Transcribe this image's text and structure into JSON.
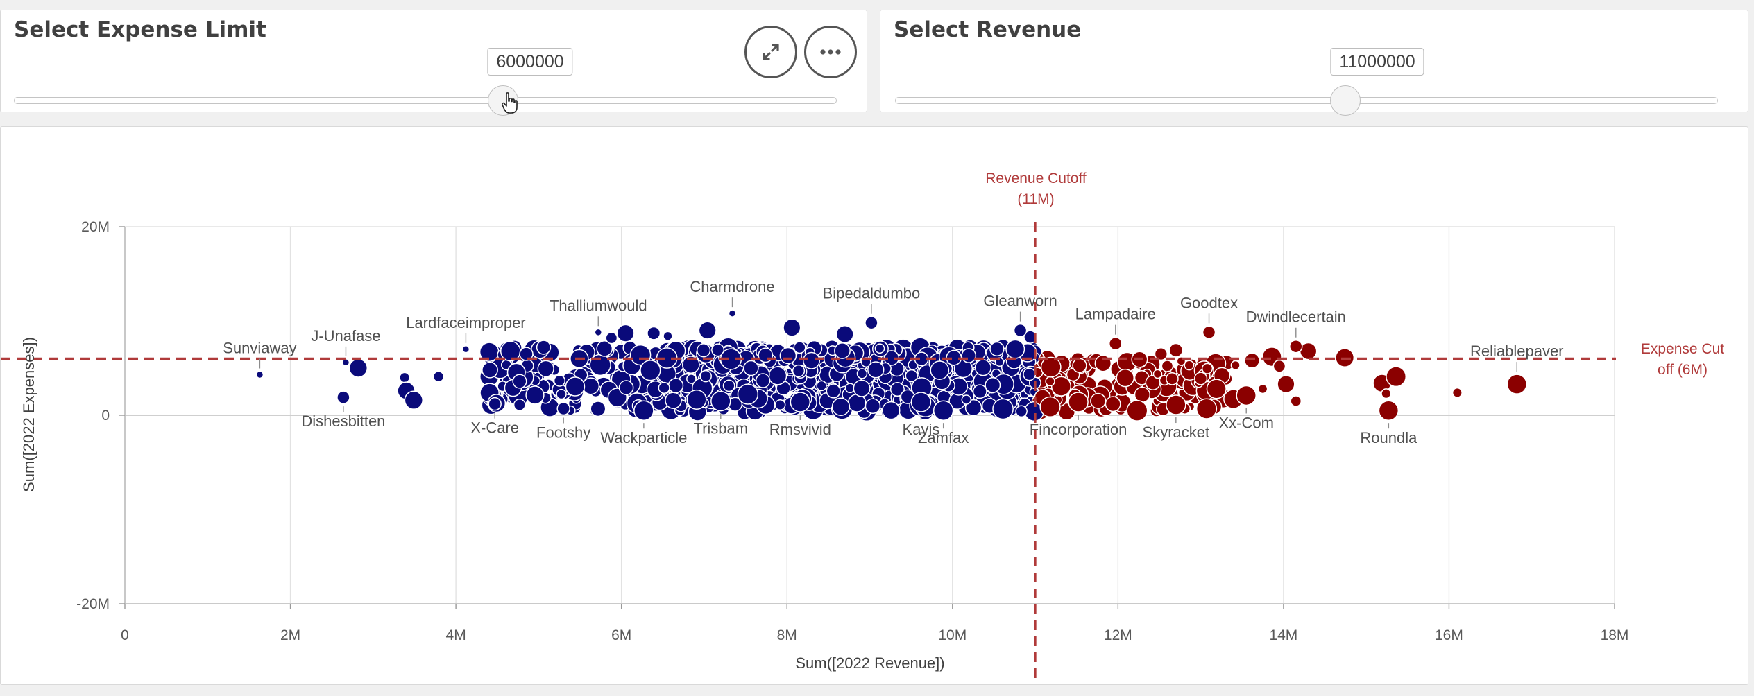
{
  "expense_filter": {
    "title": "Select Expense Limit",
    "value": "6000000",
    "slider_fraction": 0.595,
    "colors": {
      "track": "#ffffff",
      "thumb": "#f4f4f4"
    }
  },
  "revenue_filter": {
    "title": "Select Revenue",
    "value": "11000000",
    "slider_fraction": 0.546
  },
  "toolbar": {
    "expand_icon": "expand-icon",
    "more_icon": "more-options-icon"
  },
  "colors": {
    "below_cutoff": "#0a0a7a",
    "above_cutoff": "#8b0000",
    "reference_line": "#b03a3a",
    "grid": "#e2e2e2"
  },
  "chart_data": {
    "type": "scatter",
    "xlabel": "Sum([2022 Revenue])",
    "ylabel": "Sum([2022 Expenses])",
    "xlim": [
      0,
      18000000
    ],
    "ylim": [
      -20000000,
      20000000
    ],
    "x_ticks": [
      "0",
      "2M",
      "4M",
      "6M",
      "8M",
      "10M",
      "12M",
      "14M",
      "16M",
      "18M"
    ],
    "y_ticks": [
      "20M",
      "0",
      "-20M"
    ],
    "grid": true,
    "reference_lines": [
      {
        "axis": "x",
        "value": 11000000,
        "label_line1": "Revenue Cutoff",
        "label_line2": "(11M)"
      },
      {
        "axis": "y",
        "value": 6000000,
        "label_line1": "Expense Cut",
        "label_line2": "off (6M)"
      }
    ],
    "labeled_points": [
      {
        "name": "Sunviaway",
        "x": 1630000,
        "y": 4300000,
        "size": "s",
        "label_pos": "above"
      },
      {
        "name": "J-Unafase",
        "x": 2670000,
        "y": 5600000,
        "size": "s",
        "label_pos": "above"
      },
      {
        "name": "Dishesbitten",
        "x": 2640000,
        "y": 1900000,
        "size": "m",
        "label_pos": "below"
      },
      {
        "name": "Lardfaceimproper",
        "x": 4120000,
        "y": 7000000,
        "size": "s",
        "label_pos": "above"
      },
      {
        "name": "X-Care",
        "x": 4470000,
        "y": 1200000,
        "size": "m",
        "label_pos": "below"
      },
      {
        "name": "Footshy",
        "x": 5300000,
        "y": 700000,
        "size": "m",
        "label_pos": "below"
      },
      {
        "name": "Thalliumwould",
        "x": 5720000,
        "y": 8800000,
        "size": "s",
        "label_pos": "above"
      },
      {
        "name": "Wackparticle",
        "x": 6270000,
        "y": 500000,
        "size": "l",
        "label_pos": "below"
      },
      {
        "name": "Charmdrone",
        "x": 7340000,
        "y": 10800000,
        "size": "s",
        "label_pos": "above"
      },
      {
        "name": "Trisbam",
        "x": 7200000,
        "y": 1500000,
        "size": "l",
        "label_pos": "below"
      },
      {
        "name": "Rmsvivid",
        "x": 8160000,
        "y": 1400000,
        "size": "l",
        "label_pos": "below"
      },
      {
        "name": "Bipedaldumbo",
        "x": 9020000,
        "y": 9800000,
        "size": "m",
        "label_pos": "above"
      },
      {
        "name": "Kayis",
        "x": 9620000,
        "y": 1400000,
        "size": "l",
        "label_pos": "below"
      },
      {
        "name": "Zamfax",
        "x": 9890000,
        "y": 500000,
        "size": "l",
        "label_pos": "below"
      },
      {
        "name": "Gleanworn",
        "x": 10820000,
        "y": 9000000,
        "size": "m",
        "label_pos": "above"
      },
      {
        "name": "Fincorporation",
        "x": 11520000,
        "y": 1400000,
        "size": "l",
        "label_pos": "below"
      },
      {
        "name": "Lampadaire",
        "x": 11970000,
        "y": 7600000,
        "size": "m",
        "label_pos": "above"
      },
      {
        "name": "Skyracket",
        "x": 12700000,
        "y": 1100000,
        "size": "l",
        "label_pos": "below"
      },
      {
        "name": "Goodtex",
        "x": 13100000,
        "y": 8800000,
        "size": "m",
        "label_pos": "above"
      },
      {
        "name": "Xx-Com",
        "x": 13550000,
        "y": 2100000,
        "size": "l",
        "label_pos": "below"
      },
      {
        "name": "Dwindlecertain",
        "x": 14150000,
        "y": 7300000,
        "size": "m",
        "label_pos": "above"
      },
      {
        "name": "Roundla",
        "x": 15270000,
        "y": 500000,
        "size": "l",
        "label_pos": "below"
      },
      {
        "name": "Reliablepaver",
        "x": 16820000,
        "y": 3300000,
        "size": "l",
        "label_pos": "above"
      }
    ],
    "unlabeled_points": [
      [
        3380000,
        4000000
      ],
      [
        3400000,
        2600000
      ],
      [
        3490000,
        1600000
      ],
      [
        3790000,
        4100000
      ],
      [
        2820000,
        5000000
      ],
      [
        4410000,
        4800000
      ],
      [
        4660000,
        6800000
      ],
      [
        4850000,
        6500000
      ],
      [
        4690000,
        2900000
      ],
      [
        4770000,
        3600000
      ],
      [
        5060000,
        7200000
      ],
      [
        5490000,
        6000000
      ],
      [
        5880000,
        8200000
      ],
      [
        6050000,
        8700000
      ],
      [
        6390000,
        8700000
      ],
      [
        6560000,
        8400000
      ],
      [
        7040000,
        9000000
      ],
      [
        8060000,
        9300000
      ],
      [
        8700000,
        8600000
      ],
      [
        10940000,
        8300000
      ],
      [
        14740000,
        6100000
      ],
      [
        14300000,
        6800000
      ],
      [
        13860000,
        6200000
      ],
      [
        13620000,
        5800000
      ],
      [
        13420000,
        5300000
      ],
      [
        13950000,
        5200000
      ],
      [
        14030000,
        3300000
      ],
      [
        14150000,
        1500000
      ],
      [
        13750000,
        2800000
      ],
      [
        13190000,
        2800000
      ],
      [
        13000000,
        3900000
      ],
      [
        12860000,
        5300000
      ],
      [
        15190000,
        3400000
      ],
      [
        15240000,
        2300000
      ],
      [
        15360000,
        4100000
      ],
      [
        16100000,
        2400000
      ],
      [
        12520000,
        6500000
      ],
      [
        12700000,
        6900000
      ],
      [
        11820000,
        5500000
      ],
      [
        11190000,
        5100000
      ]
    ]
  }
}
